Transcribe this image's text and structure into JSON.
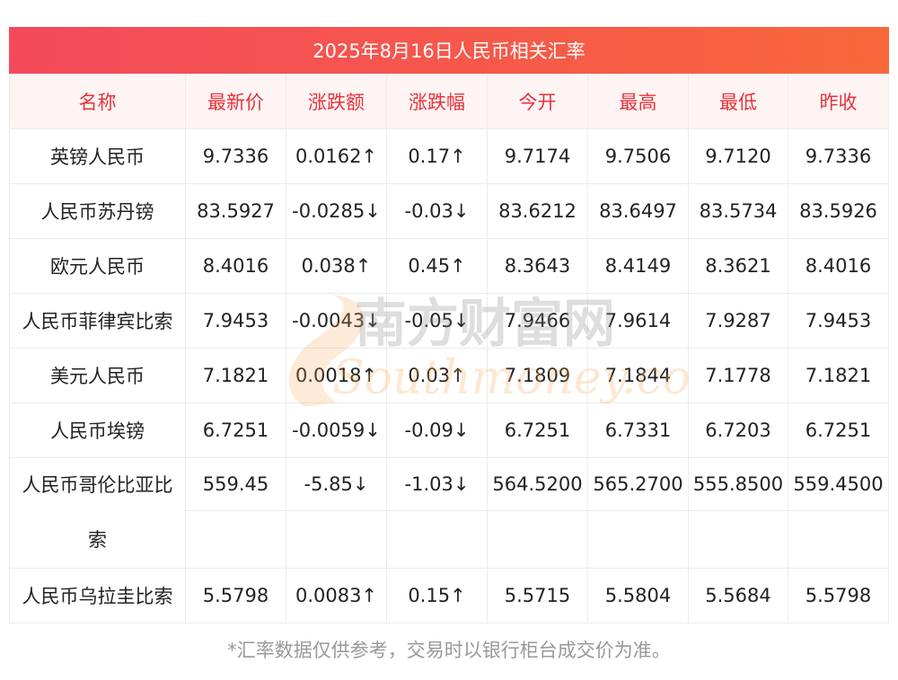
{
  "title": "2025年8月16日人民币相关汇率",
  "headers": [
    "名称",
    "最新价",
    "涨跌额",
    "涨跌幅",
    "今开",
    "最高",
    "最低",
    "昨收"
  ],
  "rows": [
    {
      "name": "英镑人民币",
      "latest": "9.7336",
      "change": "0.0162↑",
      "pct": "0.17↑",
      "open": "9.7174",
      "high": "9.7506",
      "low": "9.7120",
      "prev": "9.7336",
      "trend": "up"
    },
    {
      "name": "人民币苏丹镑",
      "latest": "83.5927",
      "change": "-0.0285↓",
      "pct": "-0.03↓",
      "open": "83.6212",
      "high": "83.6497",
      "low": "83.5734",
      "prev": "83.5926",
      "trend": "down"
    },
    {
      "name": "欧元人民币",
      "latest": "8.4016",
      "change": "0.038↑",
      "pct": "0.45↑",
      "open": "8.3643",
      "high": "8.4149",
      "low": "8.3621",
      "prev": "8.4016",
      "trend": "up"
    },
    {
      "name": "人民币菲律宾比索",
      "latest": "7.9453",
      "change": "-0.0043↓",
      "pct": "-0.05↓",
      "open": "7.9466",
      "high": "7.9614",
      "low": "7.9287",
      "prev": "7.9453",
      "trend": "down"
    },
    {
      "name": "美元人民币",
      "latest": "7.1821",
      "change": "0.0018↑",
      "pct": "0.03↑",
      "open": "7.1809",
      "high": "7.1844",
      "low": "7.1778",
      "prev": "7.1821",
      "trend": "up"
    },
    {
      "name": "人民币埃镑",
      "latest": "6.7251",
      "change": "-0.0059↓",
      "pct": "-0.09↓",
      "open": "6.7251",
      "high": "6.7331",
      "low": "6.7203",
      "prev": "6.7251",
      "trend": "down"
    },
    {
      "name": "人民币哥伦比亚比索",
      "latest": "559.45",
      "change": "-5.85↓",
      "pct": "-1.03↓",
      "open": "564.5200",
      "high": "565.2700",
      "low": "555.8500",
      "prev": "559.4500",
      "trend": "down"
    },
    {
      "name": "人民币乌拉圭比索",
      "latest": "5.5798",
      "change": "0.0083↑",
      "pct": "0.15↑",
      "open": "5.5715",
      "high": "5.5804",
      "low": "5.5684",
      "prev": "5.5798",
      "trend": "up"
    }
  ],
  "watermark": {
    "cn": "南方财富网",
    "en": "Southmoney.com"
  },
  "note": "*汇率数据仅供参考，交易时以银行柜台成交价为准。",
  "colors": {
    "up": "#e60012",
    "down": "#138c1a",
    "header_text": "#e8323a",
    "title_bg_start": "#f44a5c",
    "title_bg_end": "#f7683a"
  }
}
